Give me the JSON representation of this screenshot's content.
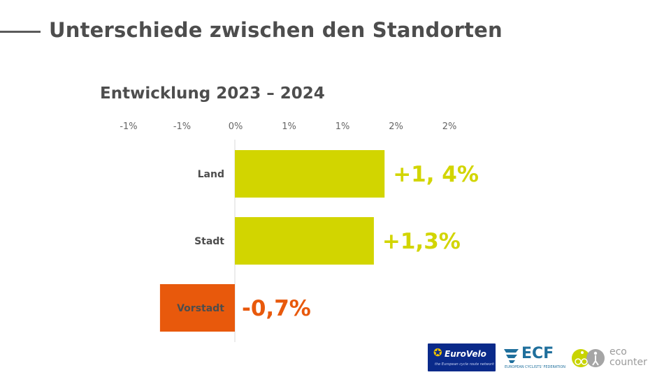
{
  "header": {
    "title": "Unterschiede zwischen den Standorten"
  },
  "chart_data": {
    "type": "bar",
    "orientation": "horizontal",
    "title": "Entwicklung 2023 – 2024",
    "categories": [
      "Land",
      "Stadt",
      "Vorstadt"
    ],
    "values": [
      1.4,
      1.3,
      -0.7
    ],
    "value_labels": [
      "+1, 4%",
      "+1,3%",
      "-0,7%"
    ],
    "xlim": [
      -1.5,
      2.5
    ],
    "x_ticks": [
      -1.5,
      -1.0,
      -0.5,
      0.0,
      0.5,
      1.0,
      1.5,
      2.0
    ],
    "x_tick_labels": [
      "-1%",
      "-1%",
      "0%",
      "1%",
      "1%",
      "2%",
      "2%"
    ],
    "x_tick_values": [
      -1.0,
      -0.5,
      0.0,
      0.5,
      1.0,
      1.5,
      2.0
    ],
    "grid": false,
    "colors": {
      "positive": "#d2d500",
      "negative": "#e8590c"
    }
  },
  "logos": {
    "eurovelo": {
      "name": "EuroVelo",
      "tagline": "the European cycle route network",
      "icon": "eu-star-icon"
    },
    "ecf": {
      "name": "ECF",
      "tagline": "EUROPEAN CYCLISTS' FEDERATION",
      "icon": "ecf-wings-icon"
    },
    "eco_counter": {
      "line1": "eco",
      "line2": "counter",
      "icon": "eco-counter-cyclist-icon"
    }
  }
}
